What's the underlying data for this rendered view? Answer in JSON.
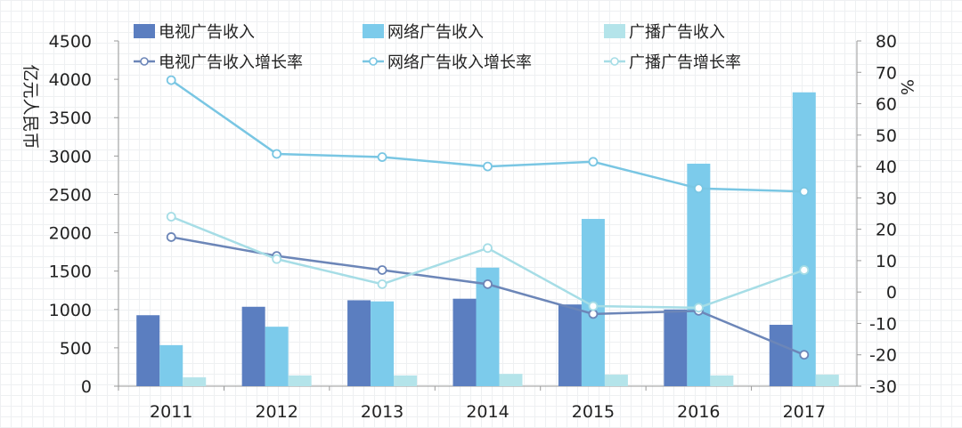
{
  "chart_data": {
    "type": "bar",
    "categories": [
      "2011",
      "2012",
      "2013",
      "2014",
      "2015",
      "2016",
      "2017"
    ],
    "bar_series": [
      {
        "name": "电视广告收入",
        "color": "#5b7ec0",
        "values": [
          925,
          1035,
          1120,
          1140,
          1065,
          1000,
          800
        ]
      },
      {
        "name": "网络广告收入",
        "color": "#7ccbeb",
        "values": [
          535,
          775,
          1105,
          1545,
          2180,
          2900,
          3830
        ]
      },
      {
        "name": "广播广告收入",
        "color": "#b4e4ea",
        "values": [
          115,
          140,
          140,
          160,
          150,
          140,
          150
        ]
      }
    ],
    "line_series": [
      {
        "name": "电视广告收入增长率",
        "color": "#6c86b8",
        "values": [
          17.5,
          11.5,
          7,
          2.5,
          -7,
          -6,
          -20
        ]
      },
      {
        "name": "网络广告收入增长率",
        "color": "#79c6e3",
        "values": [
          67.5,
          44,
          43,
          40,
          41.5,
          33,
          32
        ]
      },
      {
        "name": "广播广告增长率",
        "color": "#a6dde6",
        "values": [
          24,
          10.5,
          2.5,
          14,
          -4.5,
          -5,
          7
        ]
      }
    ],
    "ylabel": "亿元人民币",
    "y2label": "%",
    "ylim": [
      0,
      4500
    ],
    "y2lim": [
      -30,
      80
    ],
    "yticks": [
      "0",
      "500",
      "1000",
      "1500",
      "2000",
      "2500",
      "3000",
      "3500",
      "4000",
      "4500"
    ],
    "y2ticks": [
      "-30",
      "-20",
      "-10",
      "0",
      "10",
      "20",
      "30",
      "40",
      "50",
      "60",
      "70",
      "80"
    ],
    "legend_position": "top"
  }
}
